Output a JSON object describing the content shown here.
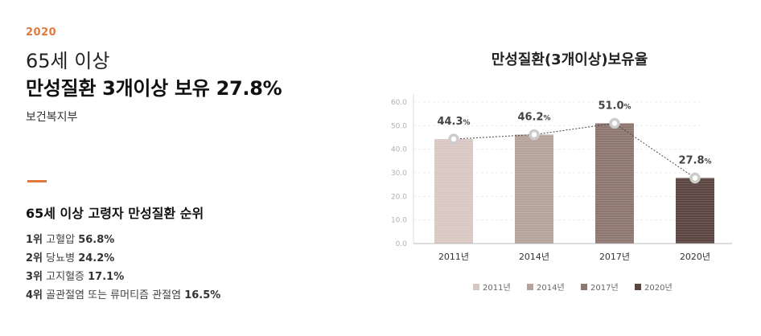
{
  "left": {
    "year": "2020",
    "subtitle": "65세 이상",
    "headline": "만성질환 3개이상 보유 27.8%",
    "source": "보건복지부",
    "ranking_title": "65세 이상 고령자 만성질환 순위",
    "ranking": [
      {
        "rank": "1위",
        "name": "고혈압",
        "value": "56.8%"
      },
      {
        "rank": "2위",
        "name": "당뇨병",
        "value": "24.2%"
      },
      {
        "rank": "3위",
        "name": "고지혈증",
        "value": "17.1%"
      },
      {
        "rank": "4위",
        "name": "골관절염 또는 류머티즘 관절염",
        "value": "16.5%"
      }
    ]
  },
  "chart_title": "만성질환(3개이상)보유율",
  "chart_data": {
    "type": "bar",
    "title": "만성질환(3개이상)보유율",
    "categories": [
      "2011년",
      "2014년",
      "2017년",
      "2020년"
    ],
    "values": [
      44.3,
      46.2,
      51.0,
      27.8
    ],
    "value_labels": [
      "44.3",
      "46.2",
      "51.0",
      "27.8"
    ],
    "value_unit": "%",
    "y_ticks": [
      "0.0",
      "10.0",
      "20.0",
      "30.0",
      "40.0",
      "50.0",
      "60.0"
    ],
    "ylim": [
      0,
      60
    ],
    "grid": true,
    "overlay_line": "dotted",
    "legend": [
      "2011년",
      "2014년",
      "2017년",
      "2020년"
    ],
    "legend_position": "bottom",
    "colors": [
      "#d9c8c2",
      "#b6a39c",
      "#8e7770",
      "#5b4540"
    ]
  }
}
